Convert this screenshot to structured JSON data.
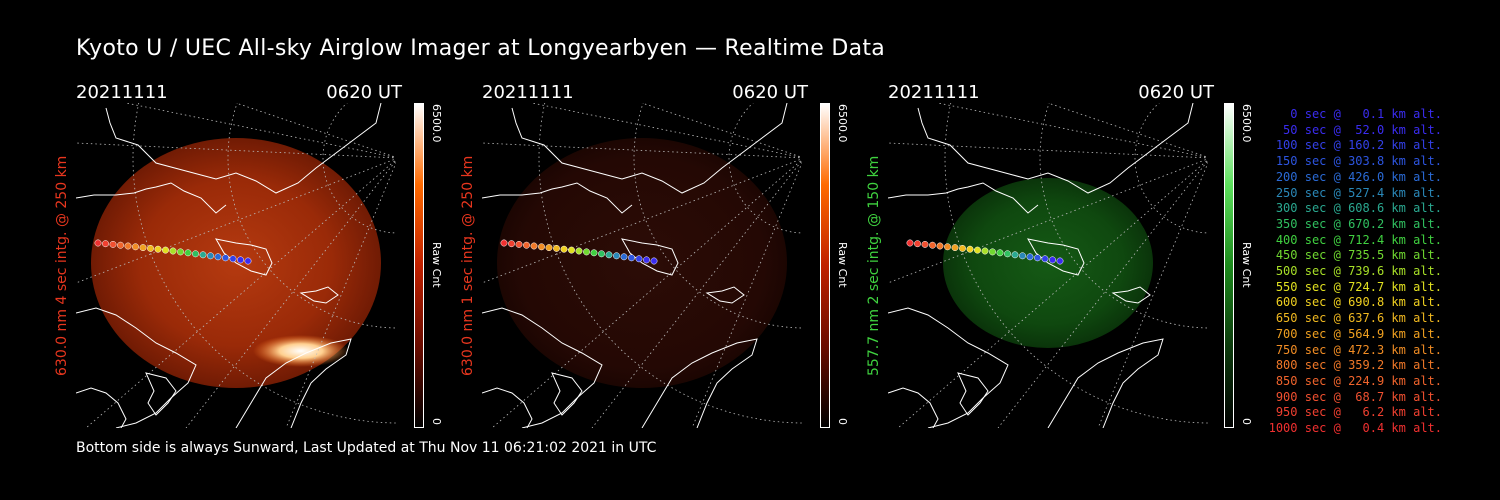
{
  "title": "Kyoto U / UEC All-sky Airglow Imager at Longyearbyen — Realtime Data",
  "footer": "Bottom side is always Sunward, Last Updated at Thu Nov 11 06:21:02 2021 in UTC",
  "panels": [
    {
      "date": "20211111",
      "time": "0620 UT",
      "side_label": "630.0 nm 4 sec intg. @ 250 km",
      "cbar_max": "6500.0",
      "cbar_min": "0",
      "cbar_unit": "Raw Cnt",
      "color": "#e8361e",
      "glow": "red-bright"
    },
    {
      "date": "20211111",
      "time": "0620 UT",
      "side_label": "630.0 nm 1 sec intg. @ 250 km",
      "cbar_max": "6500.0",
      "cbar_min": "0",
      "cbar_unit": "Raw Cnt",
      "color": "#e8361e",
      "glow": "red-dim"
    },
    {
      "date": "20211111",
      "time": "0620 UT",
      "side_label": "557.7 nm 2 sec intg. @ 150 km",
      "cbar_max": "6500.0",
      "cbar_min": "0",
      "cbar_unit": "Raw Cnt",
      "color": "#3fd23f",
      "glow": "green"
    }
  ],
  "legend": [
    {
      "text": "0 sec @   0.1 km alt.",
      "color": "#3a2cf0"
    },
    {
      "text": "50 sec @  52.0 km alt.",
      "color": "#3a2cf0"
    },
    {
      "text": "100 sec @ 160.2 km alt.",
      "color": "#3340e8"
    },
    {
      "text": "150 sec @ 303.8 km alt.",
      "color": "#2d55e0"
    },
    {
      "text": "200 sec @ 426.0 km alt.",
      "color": "#2a6ad5"
    },
    {
      "text": "250 sec @ 527.4 km alt.",
      "color": "#2a88b8"
    },
    {
      "text": "300 sec @ 608.6 km alt.",
      "color": "#2aa890"
    },
    {
      "text": "350 sec @ 670.2 km alt.",
      "color": "#30c060"
    },
    {
      "text": "400 sec @ 712.4 km alt.",
      "color": "#40d040"
    },
    {
      "text": "450 sec @ 735.5 km alt.",
      "color": "#70d830"
    },
    {
      "text": "500 sec @ 739.6 km alt.",
      "color": "#a8e028"
    },
    {
      "text": "550 sec @ 724.7 km alt.",
      "color": "#e0e020"
    },
    {
      "text": "600 sec @ 690.8 km alt.",
      "color": "#f0d020"
    },
    {
      "text": "650 sec @ 637.6 km alt.",
      "color": "#f0b820"
    },
    {
      "text": "700 sec @ 564.9 km alt.",
      "color": "#f0a020"
    },
    {
      "text": "750 sec @ 472.3 km alt.",
      "color": "#f08c24"
    },
    {
      "text": "800 sec @ 359.2 km alt.",
      "color": "#f07828"
    },
    {
      "text": "850 sec @ 224.9 km alt.",
      "color": "#f0642c"
    },
    {
      "text": "900 sec @  68.7 km alt.",
      "color": "#f05030"
    },
    {
      "text": "950 sec @   6.2 km alt.",
      "color": "#f04030"
    },
    {
      "text": "1000 sec @   0.4 km alt.",
      "color": "#f03030"
    }
  ]
}
